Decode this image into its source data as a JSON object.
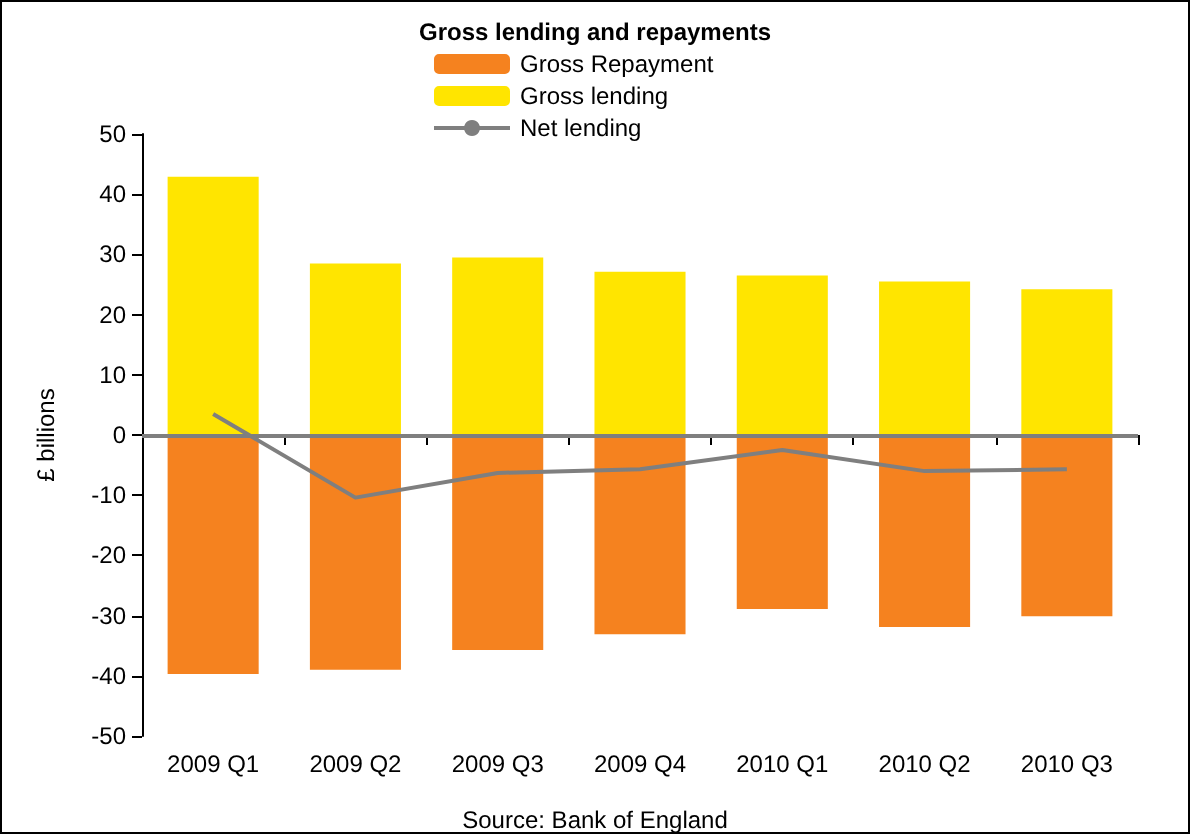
{
  "chart_data": {
    "type": "bar",
    "title": "Gross lending and repayments",
    "ylabel": "£ billions",
    "categories": [
      "2009 Q1",
      "2009 Q2",
      "2009 Q3",
      "2009 Q4",
      "2010 Q1",
      "2010 Q2",
      "2010 Q3"
    ],
    "series": [
      {
        "name": "Gross Repayment",
        "color": "#f5821f",
        "values": [
          -39.7,
          -39,
          -35.7,
          -33.1,
          -28.9,
          -31.9,
          -30.1
        ]
      },
      {
        "name": "Gross lending",
        "color": "#ffe500",
        "values": [
          42.9,
          28.5,
          29.5,
          27.1,
          26.5,
          25.5,
          24.2
        ]
      },
      {
        "name": "Net lending",
        "type": "line",
        "color": "#7f7f7f",
        "values": [
          3.5,
          -10.4,
          -6.3,
          -5.7,
          -2.5,
          -6.0,
          -5.7
        ]
      }
    ],
    "stacked": true,
    "ylim": [
      -50,
      50
    ],
    "yticks": [
      -50,
      -40,
      -30,
      -20,
      -10,
      0,
      10,
      20,
      30,
      40,
      50
    ],
    "ref_lines": [
      {
        "axis": "y",
        "value": 0,
        "color": "#7f7f7f",
        "line_style": "solid"
      }
    ],
    "grid": false,
    "legend": "top",
    "marker": "none",
    "line_style": "solid",
    "annotations": [
      "Source: Bank of England"
    ]
  }
}
